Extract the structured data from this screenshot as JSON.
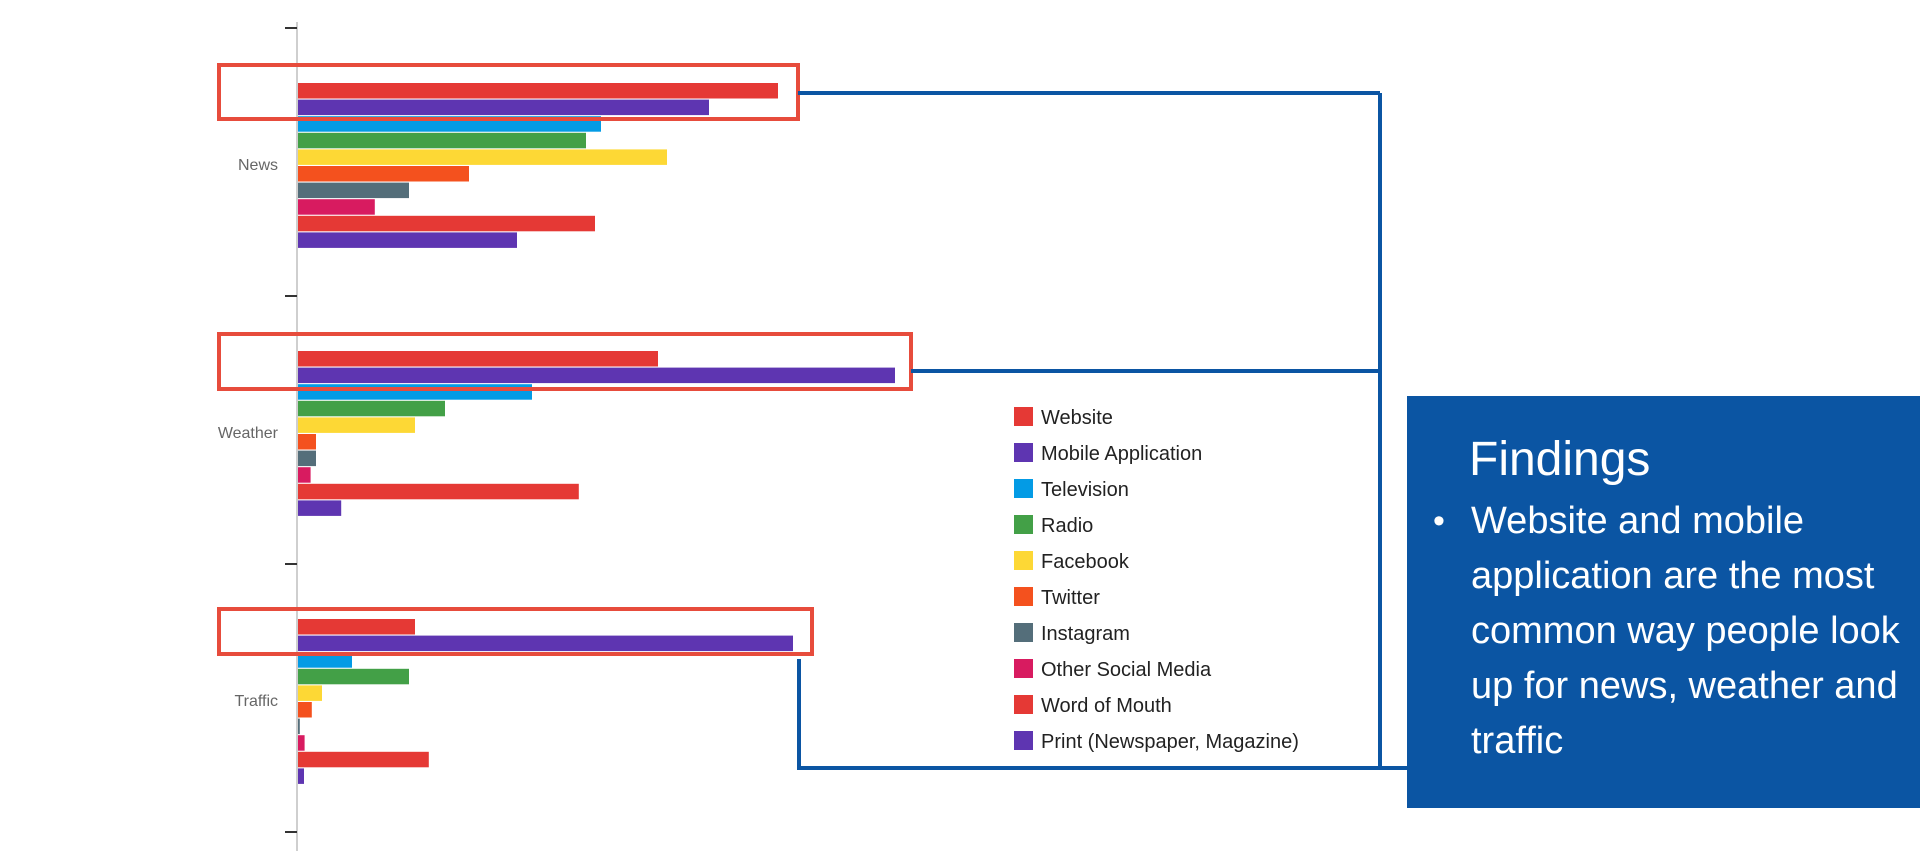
{
  "chart_data": {
    "type": "bar",
    "orientation": "horizontal",
    "categories": [
      "News",
      "Weather",
      "Traffic"
    ],
    "series": [
      {
        "name": "Website",
        "color": "#e53935",
        "values": [
          80,
          60,
          19.5
        ]
      },
      {
        "name": "Mobile Application",
        "color": "#5e35b1",
        "values": [
          68.5,
          99.5,
          82.5
        ]
      },
      {
        "name": "Television",
        "color": "#039be5",
        "values": [
          50.5,
          39,
          9
        ]
      },
      {
        "name": "Radio",
        "color": "#43a047",
        "values": [
          48,
          24.5,
          18.5
        ]
      },
      {
        "name": "Facebook",
        "color": "#fdd835",
        "values": [
          61.5,
          19.5,
          4
        ]
      },
      {
        "name": "Twitter",
        "color": "#f4511e",
        "values": [
          28.5,
          3,
          2.3
        ]
      },
      {
        "name": "Instagram",
        "color": "#546e7a",
        "values": [
          18.5,
          3,
          0.3
        ]
      },
      {
        "name": "Other Social Media",
        "color": "#d81b60",
        "values": [
          12.8,
          2.1,
          1.1
        ]
      },
      {
        "name": "Word of Mouth",
        "color": "#e53935",
        "values": [
          49.5,
          46.8,
          21.8
        ]
      },
      {
        "name": "Print (Newspaper, Magazine)",
        "color": "#5e35b1",
        "values": [
          36.5,
          7.2,
          1
        ]
      }
    ],
    "xlim": [
      0,
      100
    ],
    "legend_position": "right",
    "highlighted_series": [
      "Website",
      "Mobile Application"
    ],
    "highlight_color": "#e74c3c",
    "connector_color": "#0b55a3"
  },
  "findings": {
    "title": "Findings",
    "bullet": "•",
    "text": "Website and mobile application are the most common way people look up for news, weather  and traffic",
    "background": "#0b55a3"
  }
}
